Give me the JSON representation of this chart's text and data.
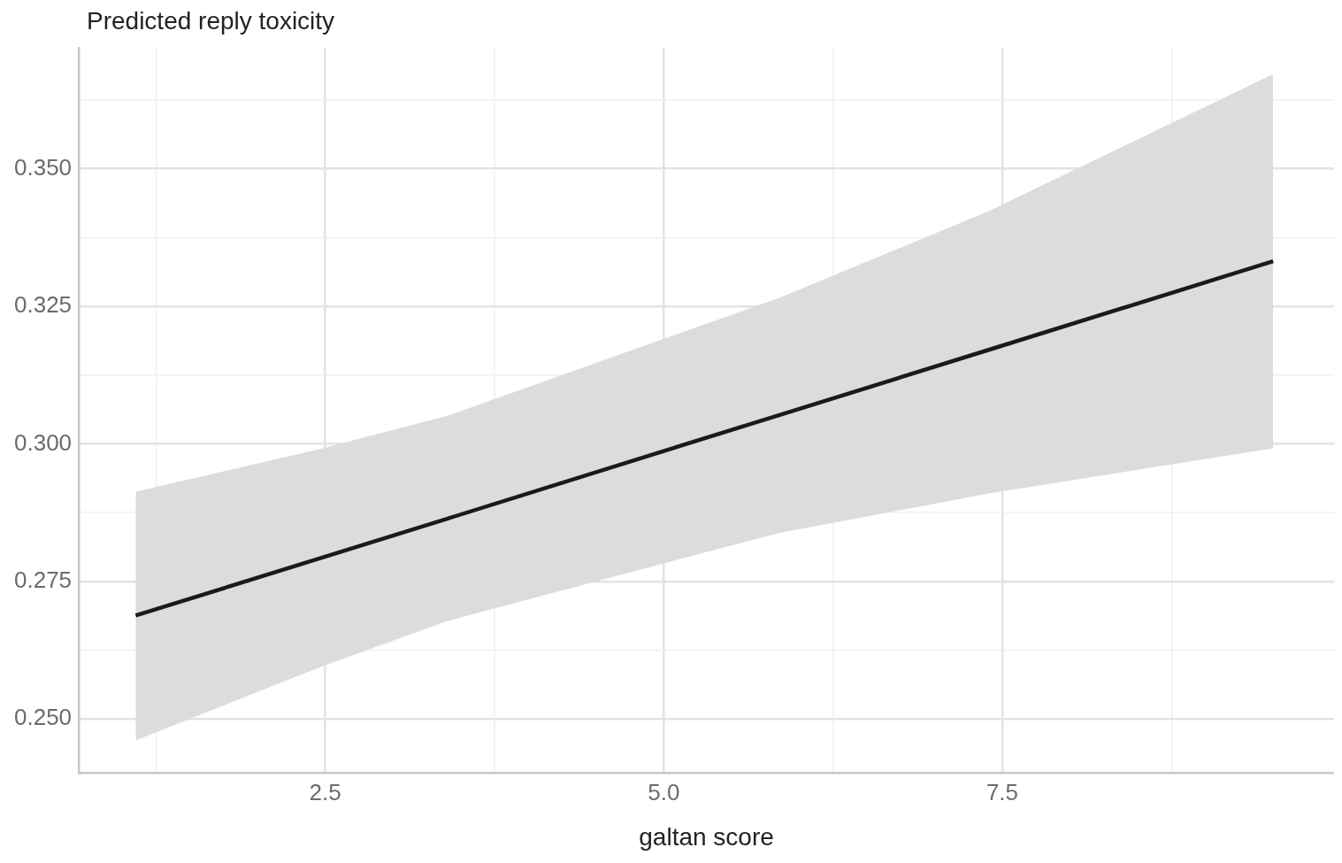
{
  "chart_data": {
    "type": "line",
    "ylabel": "Predicted reply toxicity",
    "xlabel": "galtan score",
    "x": [
      1.1,
      2.5,
      3.4,
      5.0,
      5.85,
      7.4,
      9.5
    ],
    "series": [
      {
        "color": "#1a1a1a",
        "values": [
          0.2688,
          0.2795,
          0.2864,
          0.2987,
          0.3052,
          0.3171,
          0.3332
        ],
        "lower": [
          0.2461,
          0.2598,
          0.2678,
          0.2783,
          0.2838,
          0.291,
          0.2992
        ],
        "upper": [
          0.2913,
          0.2993,
          0.3051,
          0.3191,
          0.3265,
          0.3423,
          0.3672
        ]
      }
    ],
    "xlim": [
      0.68,
      9.95
    ],
    "ylim": [
      0.2402,
      0.372
    ],
    "xticks": [
      {
        "value": 1.25,
        "label": null
      },
      2.5,
      {
        "value": 3.75,
        "label": null
      },
      {
        "value": 5,
        "label": "5.0"
      },
      {
        "value": 6.25,
        "label": null
      },
      7.5,
      {
        "value": 8.75,
        "label": null
      }
    ],
    "yticks": [
      {
        "value": 0.25,
        "label": "0.250"
      },
      {
        "value": 0.2625,
        "label": null
      },
      0.275,
      {
        "value": 0.2875,
        "label": null
      },
      {
        "value": 0.3,
        "label": "0.300"
      },
      {
        "value": 0.3125,
        "label": null
      },
      0.325,
      {
        "value": 0.3375,
        "label": null
      },
      {
        "value": 0.35,
        "label": "0.350"
      },
      {
        "value": 0.3625,
        "label": null
      }
    ],
    "grid": true,
    "legend": false,
    "marker": "none",
    "line_style": "solid"
  }
}
